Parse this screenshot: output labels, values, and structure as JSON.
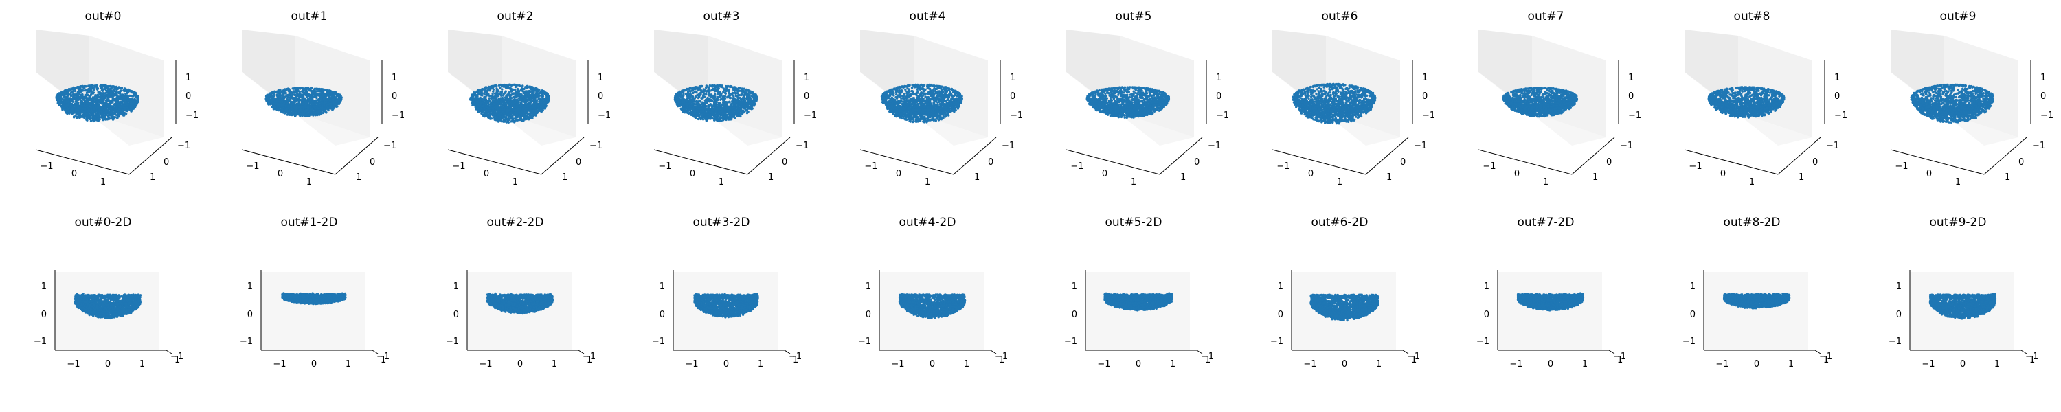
{
  "figure": {
    "point_color": "#1f77b4",
    "pane_colors": {
      "left": "#ebebeb",
      "right": "#f2f2f2",
      "floor": "#f6f6f6"
    }
  },
  "chart_data": [
    {
      "type": "scatter",
      "view": "3d",
      "title": "out#0",
      "xticks": [
        "−1",
        "0",
        "1"
      ],
      "yticks": [
        "−1",
        "0",
        "1"
      ],
      "zticks": [
        "−1",
        "0",
        "1"
      ],
      "xlim": [
        -1.6,
        1.6
      ],
      "ylim": [
        -1.6,
        1.6
      ],
      "zlim": [
        -1.6,
        1.6
      ],
      "shape": {
        "width": 1.0,
        "height": 1.0,
        "hole": 0.1
      }
    },
    {
      "type": "scatter",
      "view": "3d",
      "title": "out#1",
      "xticks": [
        "−1",
        "0",
        "1"
      ],
      "yticks": [
        "−1",
        "0",
        "1"
      ],
      "zticks": [
        "−1",
        "0",
        "1"
      ],
      "xlim": [
        -1.6,
        1.6
      ],
      "ylim": [
        -1.6,
        1.6
      ],
      "zlim": [
        -1.6,
        1.6
      ],
      "shape": {
        "width": 0.92,
        "height": 0.8,
        "hole": 0.15
      }
    },
    {
      "type": "scatter",
      "view": "3d",
      "title": "out#2",
      "xticks": [
        "−1",
        "0",
        "1"
      ],
      "yticks": [
        "−1",
        "0",
        "1"
      ],
      "zticks": [
        "−1",
        "0",
        "1"
      ],
      "xlim": [
        -1.6,
        1.6
      ],
      "ylim": [
        -1.6,
        1.6
      ],
      "zlim": [
        -1.6,
        1.6
      ],
      "shape": {
        "width": 0.96,
        "height": 1.05,
        "hole": 0.05
      }
    },
    {
      "type": "scatter",
      "view": "3d",
      "title": "out#3",
      "xticks": [
        "−1",
        "0",
        "1"
      ],
      "yticks": [
        "−1",
        "0",
        "1"
      ],
      "zticks": [
        "−1",
        "0",
        "1"
      ],
      "xlim": [
        -1.6,
        1.6
      ],
      "ylim": [
        -1.6,
        1.6
      ],
      "zlim": [
        -1.6,
        1.6
      ],
      "shape": {
        "width": 1.0,
        "height": 1.0,
        "hole": 0.45
      }
    },
    {
      "type": "scatter",
      "view": "3d",
      "title": "out#4",
      "xticks": [
        "−1",
        "0",
        "1"
      ],
      "yticks": [
        "−1",
        "0",
        "1"
      ],
      "zticks": [
        "−1",
        "0",
        "1"
      ],
      "xlim": [
        -1.6,
        1.6
      ],
      "ylim": [
        -1.6,
        1.6
      ],
      "zlim": [
        -1.6,
        1.6
      ],
      "shape": {
        "width": 0.98,
        "height": 1.05,
        "hole": 0.25
      }
    },
    {
      "type": "scatter",
      "view": "3d",
      "title": "out#5",
      "xticks": [
        "−1",
        "0",
        "1"
      ],
      "yticks": [
        "−1",
        "0",
        "1"
      ],
      "zticks": [
        "−1",
        "0",
        "1"
      ],
      "xlim": [
        -1.6,
        1.6
      ],
      "ylim": [
        -1.6,
        1.6
      ],
      "zlim": [
        -1.6,
        1.6
      ],
      "shape": {
        "width": 1.0,
        "height": 0.85,
        "hole": 0.25
      }
    },
    {
      "type": "scatter",
      "view": "3d",
      "title": "out#6",
      "xticks": [
        "−1",
        "0",
        "1"
      ],
      "yticks": [
        "−1",
        "0",
        "1"
      ],
      "zticks": [
        "−1",
        "0",
        "1"
      ],
      "xlim": [
        -1.6,
        1.6
      ],
      "ylim": [
        -1.6,
        1.6
      ],
      "zlim": [
        -1.6,
        1.6
      ],
      "shape": {
        "width": 1.0,
        "height": 1.1,
        "hole": 0.15
      }
    },
    {
      "type": "scatter",
      "view": "3d",
      "title": "out#7",
      "xticks": [
        "−1",
        "0",
        "1"
      ],
      "yticks": [
        "−1",
        "0",
        "1"
      ],
      "zticks": [
        "−1",
        "0",
        "1"
      ],
      "xlim": [
        -1.6,
        1.6
      ],
      "ylim": [
        -1.6,
        1.6
      ],
      "zlim": [
        -1.6,
        1.6
      ],
      "shape": {
        "width": 0.9,
        "height": 0.8,
        "hole": 0.15
      }
    },
    {
      "type": "scatter",
      "view": "3d",
      "title": "out#8",
      "xticks": [
        "−1",
        "0",
        "1"
      ],
      "yticks": [
        "−1",
        "0",
        "1"
      ],
      "zticks": [
        "−1",
        "0",
        "1"
      ],
      "xlim": [
        -1.6,
        1.6
      ],
      "ylim": [
        -1.6,
        1.6
      ],
      "zlim": [
        -1.6,
        1.6
      ],
      "shape": {
        "width": 0.92,
        "height": 0.85,
        "hole": 0.5
      }
    },
    {
      "type": "scatter",
      "view": "3d",
      "title": "out#9",
      "xticks": [
        "−1",
        "0",
        "1"
      ],
      "yticks": [
        "−1",
        "0",
        "1"
      ],
      "zticks": [
        "−1",
        "0",
        "1"
      ],
      "xlim": [
        -1.6,
        1.6
      ],
      "ylim": [
        -1.6,
        1.6
      ],
      "zlim": [
        -1.6,
        1.6
      ],
      "shape": {
        "width": 1.0,
        "height": 1.05,
        "hole": 0.2
      }
    },
    {
      "type": "scatter",
      "view": "2d",
      "title": "out#0-2D",
      "xticks": [
        "−1",
        "0",
        "1"
      ],
      "yticks": [
        "−1",
        "0",
        "1"
      ],
      "corner_ticks": [
        "−1",
        "1"
      ],
      "xlim": [
        -1.6,
        1.6
      ],
      "ylim": [
        -1.6,
        1.6
      ],
      "shape": {
        "width": 0.95,
        "height": 0.78,
        "top": 0.25
      }
    },
    {
      "type": "scatter",
      "view": "2d",
      "title": "out#1-2D",
      "xticks": [
        "−1",
        "0",
        "1"
      ],
      "yticks": [
        "−1",
        "0",
        "1"
      ],
      "corner_ticks": [
        "−1",
        "1"
      ],
      "xlim": [
        -1.6,
        1.6
      ],
      "ylim": [
        -1.6,
        1.6
      ],
      "shape": {
        "width": 0.92,
        "height": 0.3,
        "top": 0.1
      }
    },
    {
      "type": "scatter",
      "view": "2d",
      "title": "out#2-2D",
      "xticks": [
        "−1",
        "0",
        "1"
      ],
      "yticks": [
        "−1",
        "0",
        "1"
      ],
      "corner_ticks": [
        "−1",
        "1"
      ],
      "xlim": [
        -1.6,
        1.6
      ],
      "ylim": [
        -1.6,
        1.6
      ],
      "shape": {
        "width": 0.95,
        "height": 0.62,
        "top": 0.2
      }
    },
    {
      "type": "scatter",
      "view": "2d",
      "title": "out#3-2D",
      "xticks": [
        "−1",
        "0",
        "1"
      ],
      "yticks": [
        "−1",
        "0",
        "1"
      ],
      "corner_ticks": [
        "−1",
        "1"
      ],
      "xlim": [
        -1.6,
        1.6
      ],
      "ylim": [
        -1.6,
        1.6
      ],
      "shape": {
        "width": 0.92,
        "height": 0.75,
        "top": 0.25
      }
    },
    {
      "type": "scatter",
      "view": "2d",
      "title": "out#4-2D",
      "xticks": [
        "−1",
        "0",
        "1"
      ],
      "yticks": [
        "−1",
        "0",
        "1"
      ],
      "corner_ticks": [
        "−1",
        "1"
      ],
      "xlim": [
        -1.6,
        1.6
      ],
      "ylim": [
        -1.6,
        1.6
      ],
      "shape": {
        "width": 0.95,
        "height": 0.78,
        "top": 0.2
      }
    },
    {
      "type": "scatter",
      "view": "2d",
      "title": "out#5-2D",
      "xticks": [
        "−1",
        "0",
        "1"
      ],
      "yticks": [
        "−1",
        "0",
        "1"
      ],
      "corner_ticks": [
        "−1",
        "1"
      ],
      "xlim": [
        -1.6,
        1.6
      ],
      "ylim": [
        -1.6,
        1.6
      ],
      "shape": {
        "width": 0.98,
        "height": 0.52,
        "top": 0.15
      }
    },
    {
      "type": "scatter",
      "view": "2d",
      "title": "out#6-2D",
      "xticks": [
        "−1",
        "0",
        "1"
      ],
      "yticks": [
        "−1",
        "0",
        "1"
      ],
      "corner_ticks": [
        "−1",
        "1"
      ],
      "xlim": [
        -1.6,
        1.6
      ],
      "ylim": [
        -1.6,
        1.6
      ],
      "shape": {
        "width": 0.98,
        "height": 0.85,
        "top": 0.3
      }
    },
    {
      "type": "scatter",
      "view": "2d",
      "title": "out#7-2D",
      "xticks": [
        "−1",
        "0",
        "1"
      ],
      "yticks": [
        "−1",
        "0",
        "1"
      ],
      "corner_ticks": [
        "−1",
        "1"
      ],
      "xlim": [
        -1.6,
        1.6
      ],
      "ylim": [
        -1.6,
        1.6
      ],
      "shape": {
        "width": 0.95,
        "height": 0.52,
        "top": 0.15
      }
    },
    {
      "type": "scatter",
      "view": "2d",
      "title": "out#8-2D",
      "xticks": [
        "−1",
        "0",
        "1"
      ],
      "yticks": [
        "−1",
        "0",
        "1"
      ],
      "corner_ticks": [
        "−1",
        "1"
      ],
      "xlim": [
        -1.6,
        1.6
      ],
      "ylim": [
        -1.6,
        1.6
      ],
      "shape": {
        "width": 0.95,
        "height": 0.45,
        "top": 0.12
      }
    },
    {
      "type": "scatter",
      "view": "2d",
      "title": "out#9-2D",
      "xticks": [
        "−1",
        "0",
        "1"
      ],
      "yticks": [
        "−1",
        "0",
        "1"
      ],
      "corner_ticks": [
        "−1",
        "1"
      ],
      "xlim": [
        -1.6,
        1.6
      ],
      "ylim": [
        -1.6,
        1.6
      ],
      "shape": {
        "width": 0.95,
        "height": 0.8,
        "top": 0.25
      }
    }
  ]
}
